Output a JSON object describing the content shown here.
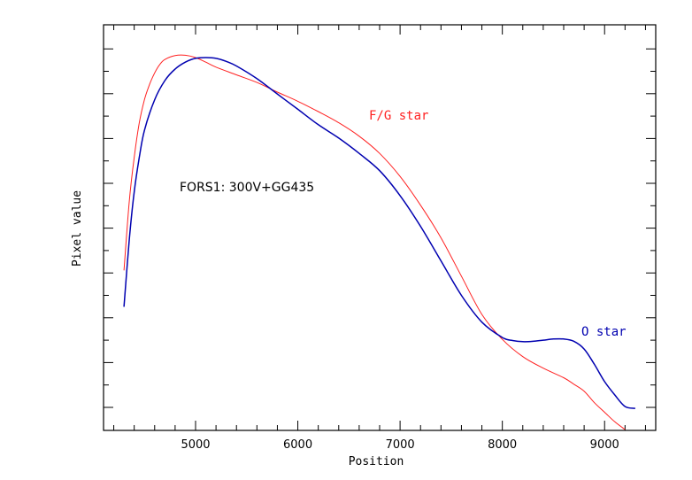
{
  "chart_data": {
    "type": "line",
    "xlabel": "Position",
    "ylabel": "Pixel value",
    "xlim": [
      4100,
      9500
    ],
    "ylim": [
      0,
      1.0
    ],
    "x_ticks": [
      5000,
      6000,
      7000,
      8000,
      9000
    ],
    "x_tick_labels": [
      "5000",
      "6000",
      "7000",
      "8000",
      "9000"
    ],
    "y_ticks_unlabeled": true,
    "grid": false,
    "annotation": "FORS1:  300V+GG435",
    "colors": {
      "fg_star": "#ff2020",
      "o_star": "#0000b0",
      "axes": "#000000"
    },
    "series": [
      {
        "name": "F/G star",
        "color": "#ff2020",
        "x": [
          4300,
          4350,
          4400,
          4450,
          4500,
          4550,
          4600,
          4650,
          4700,
          4800,
          4900,
          5000,
          5100,
          5200,
          5400,
          5600,
          5800,
          6000,
          6200,
          6400,
          6600,
          6800,
          7000,
          7200,
          7400,
          7600,
          7800,
          8000,
          8200,
          8400,
          8600,
          8700,
          8800,
          8900,
          9000,
          9100,
          9200
        ],
        "y": [
          0.415,
          0.59,
          0.71,
          0.8,
          0.86,
          0.9,
          0.93,
          0.952,
          0.965,
          0.975,
          0.976,
          0.97,
          0.958,
          0.945,
          0.925,
          0.905,
          0.88,
          0.856,
          0.829,
          0.8,
          0.765,
          0.72,
          0.66,
          0.585,
          0.5,
          0.4,
          0.3,
          0.235,
          0.19,
          0.16,
          0.135,
          0.118,
          0.1,
          0.07,
          0.045,
          0.02,
          0.0
        ]
      },
      {
        "name": "O star",
        "color": "#0000b0",
        "x": [
          4300,
          4350,
          4400,
          4450,
          4500,
          4600,
          4700,
          4800,
          4900,
          5000,
          5100,
          5200,
          5300,
          5400,
          5600,
          5800,
          6000,
          6200,
          6400,
          6600,
          6800,
          7000,
          7200,
          7400,
          7600,
          7800,
          8000,
          8100,
          8200,
          8300,
          8400,
          8500,
          8600,
          8700,
          8800,
          8900,
          9000,
          9100,
          9200,
          9300
        ],
        "y": [
          0.32,
          0.49,
          0.62,
          0.71,
          0.78,
          0.86,
          0.91,
          0.94,
          0.958,
          0.968,
          0.97,
          0.968,
          0.96,
          0.948,
          0.915,
          0.875,
          0.835,
          0.795,
          0.76,
          0.72,
          0.675,
          0.61,
          0.53,
          0.44,
          0.35,
          0.28,
          0.24,
          0.232,
          0.229,
          0.23,
          0.233,
          0.236,
          0.236,
          0.23,
          0.21,
          0.17,
          0.125,
          0.09,
          0.06,
          0.055
        ]
      }
    ]
  }
}
